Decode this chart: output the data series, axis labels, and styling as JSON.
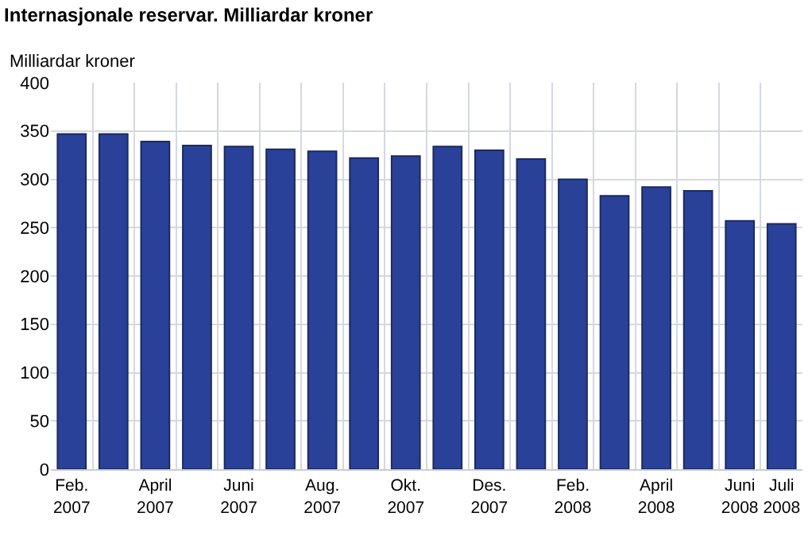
{
  "chart_data": {
    "type": "bar",
    "title": "Internasjonale reservar. Milliardar kroner",
    "ylabel": "Milliardar kroner",
    "categories": [
      "Feb.\n2007",
      null,
      "April\n2007",
      null,
      "Juni\n2007",
      null,
      "Aug.\n2007",
      null,
      "Okt.\n2007",
      null,
      "Des.\n2007",
      null,
      "Feb.\n2008",
      null,
      "April\n2008",
      null,
      "Juni\n2008",
      "Juli\n2008"
    ],
    "values": [
      347,
      347,
      339,
      335,
      334,
      331,
      329,
      322,
      324,
      334,
      330,
      321,
      300,
      283,
      292,
      288,
      257,
      254
    ],
    "color": "#2a4199",
    "ylim": [
      0,
      400
    ],
    "yticks": [
      0,
      50,
      100,
      150,
      200,
      250,
      300,
      350,
      400
    ],
    "grid": true
  }
}
